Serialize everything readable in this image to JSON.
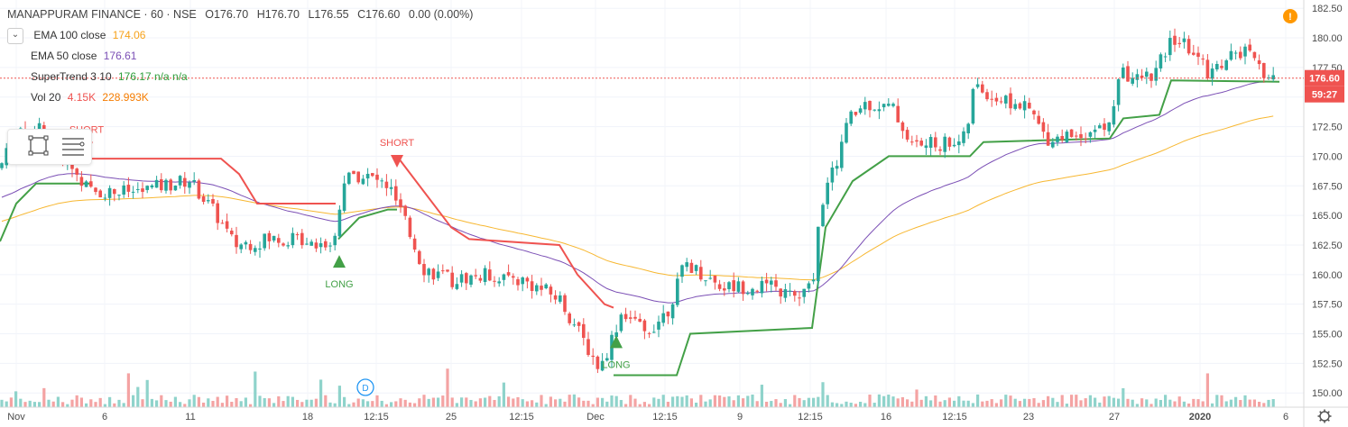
{
  "header": {
    "symbol": "MANAPPURAM FINANCE · 60 · NSE",
    "open": "O176.70",
    "high": "H176.70",
    "low": "L176.55",
    "close": "C176.60",
    "change": "0.00 (0.00%)"
  },
  "indicators": [
    {
      "name": "EMA 100 close",
      "value": "174.06",
      "color": "#f7a21b"
    },
    {
      "name": "EMA 50 close",
      "value": "176.61",
      "color": "#7b4fb5"
    },
    {
      "name": "SuperTrend 3 10",
      "value": "176.17  n/a  n/a",
      "color": "#2e9e3b"
    },
    {
      "name": "Vol 20",
      "value": "4.15K",
      "value2": "228.993K",
      "color": "#ef5350",
      "color2": "#f57c00"
    }
  ],
  "price_label": "176.60",
  "countdown_label": "59:27",
  "colors": {
    "up": "#26a69a",
    "down": "#ef5350",
    "st_up": "#43a047",
    "st_down": "#ef5350",
    "ema50": "#7b4fb5",
    "ema100": "#f7b731",
    "vol_up": "#8fd3cb",
    "vol_down": "#f4a3a3"
  },
  "chart_data": {
    "type": "candlestick",
    "ylim": [
      148.8,
      183.2
    ],
    "y_ticks": [
      150,
      152.5,
      155,
      157.5,
      160,
      162.5,
      165,
      167.5,
      170,
      172.5,
      175,
      177.5,
      180,
      182.5
    ],
    "x_ticks": [
      "Nov",
      "6",
      "11",
      "18",
      "12:15",
      "25",
      "12:15",
      "Dec",
      "12:15",
      "9",
      "12:15",
      "16",
      "12:15",
      "23",
      "27",
      "2020",
      "6"
    ],
    "annotations": [
      "SHORT",
      "SHORT",
      "LONG",
      "LONG"
    ],
    "event_marker": "D",
    "series": [
      {
        "name": "SuperTrend 3 10",
        "type": "line"
      },
      {
        "name": "EMA 50 close",
        "type": "line"
      },
      {
        "name": "EMA 100 close",
        "type": "line"
      },
      {
        "name": "Vol 20",
        "type": "bar"
      }
    ]
  }
}
